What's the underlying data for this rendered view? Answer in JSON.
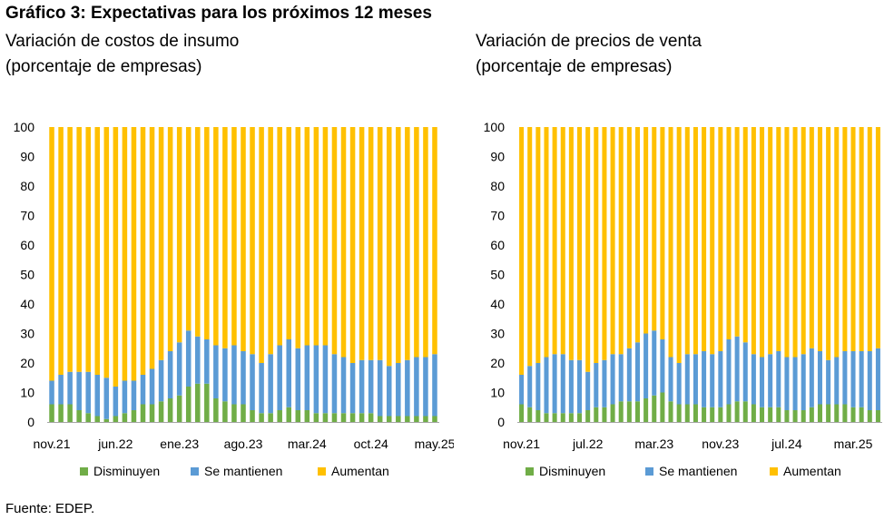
{
  "header": {
    "title": "Gráfico 3: Expectativas para los próximos 12 meses"
  },
  "panels": [
    {
      "title_line1": "Variación de costos de insumo",
      "title_line2": "(porcentaje de empresas)"
    },
    {
      "title_line1": "Variación de precios de venta",
      "title_line2": "(porcentaje de empresas)"
    }
  ],
  "colors": {
    "disminuyen": "#70ad47",
    "mantienen": "#5b9bd5",
    "aumentan": "#ffc000"
  },
  "legend": [
    "Disminuyen",
    "Se mantienen",
    "Aumentan"
  ],
  "yticks": [
    0,
    10,
    20,
    30,
    40,
    50,
    60,
    70,
    80,
    90,
    100
  ],
  "source": "Fuente: EDEP.",
  "chart_data": [
    {
      "type": "bar",
      "stacked": true,
      "ylim": [
        0,
        100
      ],
      "grid": false,
      "legend_position": "bottom",
      "x_tick_labels": [
        "nov.21",
        "jun.22",
        "ene.23",
        "ago.23",
        "mar.24",
        "oct.24",
        "may.25"
      ],
      "x_tick_index": [
        0,
        7,
        14,
        21,
        28,
        35,
        42
      ],
      "series": [
        {
          "name": "Disminuyen",
          "values": [
            6,
            6,
            6,
            4,
            3,
            2,
            1,
            2,
            3,
            4,
            6,
            6,
            7,
            8,
            9,
            12,
            13,
            13,
            8,
            7,
            6,
            6,
            4,
            3,
            3,
            4,
            5,
            4,
            4,
            3,
            3,
            3,
            3,
            3,
            3,
            3,
            2,
            2,
            2,
            2,
            2,
            2,
            2
          ]
        },
        {
          "name": "Se mantienen",
          "values": [
            8,
            10,
            11,
            13,
            14,
            14,
            14,
            10,
            11,
            10,
            10,
            12,
            14,
            16,
            18,
            19,
            16,
            15,
            18,
            18,
            20,
            18,
            19,
            17,
            20,
            22,
            23,
            21,
            22,
            23,
            23,
            20,
            19,
            17,
            18,
            18,
            19,
            17,
            18,
            19,
            20,
            20,
            21
          ]
        },
        {
          "name": "Aumentan",
          "values": [
            86,
            84,
            83,
            83,
            83,
            84,
            85,
            88,
            86,
            86,
            84,
            82,
            79,
            76,
            73,
            69,
            71,
            72,
            74,
            75,
            74,
            76,
            77,
            80,
            77,
            74,
            72,
            75,
            74,
            74,
            74,
            77,
            78,
            80,
            79,
            79,
            79,
            81,
            80,
            79,
            78,
            78,
            77
          ]
        }
      ]
    },
    {
      "type": "bar",
      "stacked": true,
      "ylim": [
        0,
        100
      ],
      "grid": false,
      "legend_position": "bottom",
      "x_tick_labels": [
        "nov.21",
        "jul.22",
        "mar.23",
        "nov.23",
        "jul.24",
        "mar.25"
      ],
      "x_tick_index": [
        0,
        8,
        16,
        24,
        32,
        40
      ],
      "series": [
        {
          "name": "Disminuyen",
          "values": [
            6,
            5,
            4,
            3,
            3,
            3,
            3,
            3,
            4,
            5,
            5,
            6,
            7,
            7,
            7,
            8,
            9,
            10,
            7,
            6,
            6,
            6,
            5,
            5,
            5,
            6,
            7,
            7,
            6,
            5,
            5,
            5,
            4,
            4,
            4,
            5,
            6,
            6,
            6,
            6,
            5,
            5,
            4,
            4
          ]
        },
        {
          "name": "Se mantienen",
          "values": [
            10,
            14,
            16,
            19,
            20,
            20,
            18,
            18,
            13,
            15,
            16,
            17,
            16,
            18,
            20,
            22,
            22,
            18,
            15,
            14,
            17,
            17,
            19,
            18,
            19,
            22,
            22,
            20,
            17,
            17,
            18,
            19,
            18,
            18,
            19,
            20,
            18,
            15,
            16,
            18,
            19,
            19,
            20,
            21
          ]
        },
        {
          "name": "Aumentan",
          "values": [
            84,
            81,
            80,
            78,
            77,
            77,
            79,
            79,
            83,
            80,
            79,
            77,
            77,
            75,
            73,
            70,
            69,
            72,
            78,
            80,
            77,
            77,
            76,
            77,
            76,
            72,
            71,
            73,
            77,
            78,
            77,
            76,
            78,
            78,
            77,
            75,
            76,
            79,
            78,
            76,
            76,
            76,
            76,
            75
          ]
        }
      ]
    }
  ]
}
